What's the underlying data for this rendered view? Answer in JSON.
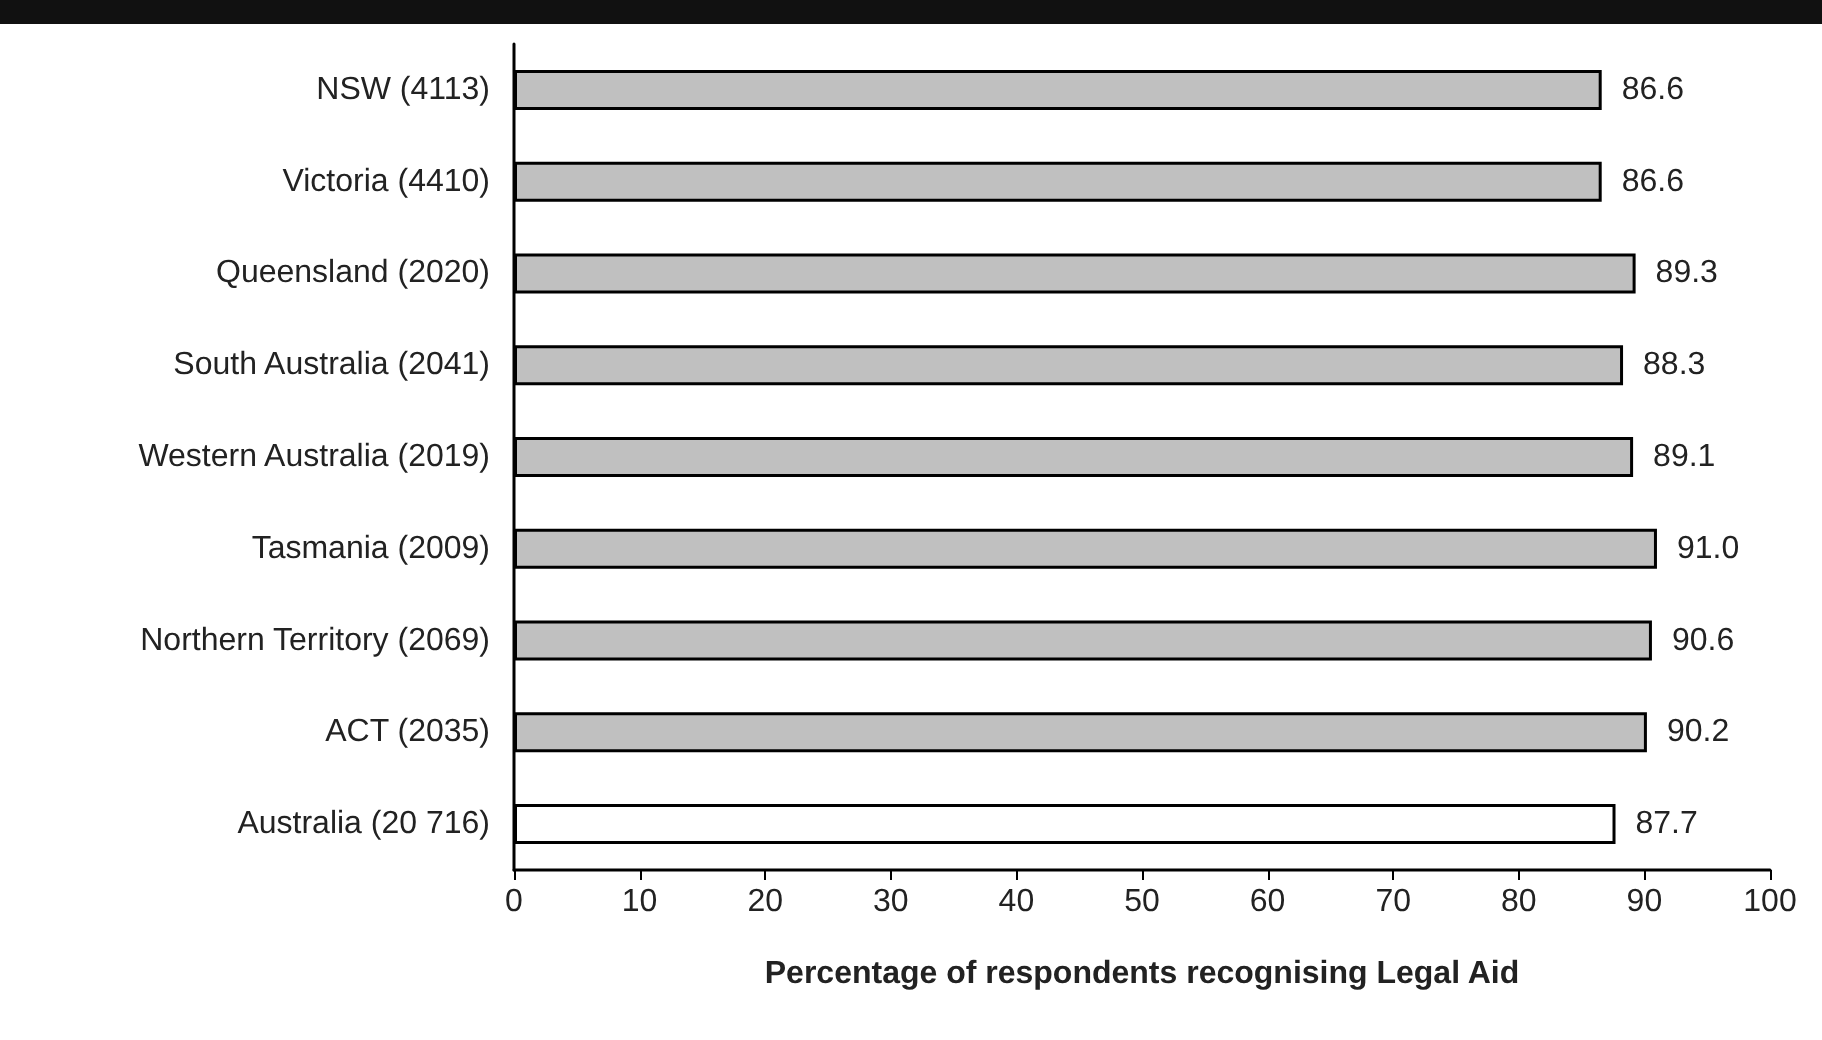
{
  "chart_data": {
    "type": "bar",
    "orientation": "horizontal",
    "xlabel": "Percentage of respondents recognising Legal Aid",
    "categories": [
      "NSW (4113)",
      "Victoria (4410)",
      "Queensland (2020)",
      "South Australia (2041)",
      "Western Australia (2019)",
      "Tasmania (2009)",
      "Northern Territory (2069)",
      "ACT (2035)",
      "Australia (20 716)"
    ],
    "values": [
      86.6,
      86.6,
      89.3,
      88.3,
      89.1,
      91.0,
      90.6,
      90.2,
      87.7
    ],
    "colors": [
      "#c0c0c0",
      "#c0c0c0",
      "#c0c0c0",
      "#c0c0c0",
      "#c0c0c0",
      "#c0c0c0",
      "#c0c0c0",
      "#c0c0c0",
      "#ffffff"
    ],
    "value_labels": [
      "86.6",
      "86.6",
      "89.3",
      "88.3",
      "89.1",
      "91.0",
      "90.6",
      "90.2",
      "87.7"
    ],
    "xlim": [
      0,
      100
    ],
    "xticks": [
      0,
      10,
      20,
      30,
      40,
      50,
      60,
      70,
      80,
      90,
      100
    ],
    "grid": false
  }
}
